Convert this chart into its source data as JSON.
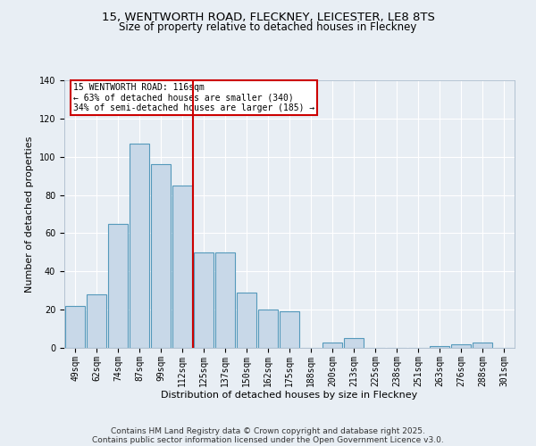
{
  "title": "15, WENTWORTH ROAD, FLECKNEY, LEICESTER, LE8 8TS",
  "subtitle": "Size of property relative to detached houses in Fleckney",
  "xlabel": "Distribution of detached houses by size in Fleckney",
  "ylabel": "Number of detached properties",
  "categories": [
    "49sqm",
    "62sqm",
    "74sqm",
    "87sqm",
    "99sqm",
    "112sqm",
    "125sqm",
    "137sqm",
    "150sqm",
    "162sqm",
    "175sqm",
    "188sqm",
    "200sqm",
    "213sqm",
    "225sqm",
    "238sqm",
    "251sqm",
    "263sqm",
    "276sqm",
    "288sqm",
    "301sqm"
  ],
  "values": [
    22,
    28,
    65,
    107,
    96,
    85,
    50,
    50,
    29,
    20,
    19,
    0,
    3,
    5,
    0,
    0,
    0,
    1,
    2,
    3,
    0
  ],
  "bar_color": "#c8d8e8",
  "bar_edge_color": "#5599bb",
  "reference_line_x": 5.5,
  "annotation_text": "15 WENTWORTH ROAD: 116sqm\n← 63% of detached houses are smaller (340)\n34% of semi-detached houses are larger (185) →",
  "annotation_box_color": "#ffffff",
  "annotation_box_edge_color": "#cc0000",
  "vline_color": "#cc0000",
  "ylim": [
    0,
    140
  ],
  "yticks": [
    0,
    20,
    40,
    60,
    80,
    100,
    120,
    140
  ],
  "bg_color": "#e8eef4",
  "footer_line1": "Contains HM Land Registry data © Crown copyright and database right 2025.",
  "footer_line2": "Contains public sector information licensed under the Open Government Licence v3.0.",
  "title_fontsize": 9.5,
  "subtitle_fontsize": 8.5,
  "xlabel_fontsize": 8,
  "ylabel_fontsize": 8,
  "tick_fontsize": 7,
  "annot_fontsize": 7,
  "footer_fontsize": 6.5
}
